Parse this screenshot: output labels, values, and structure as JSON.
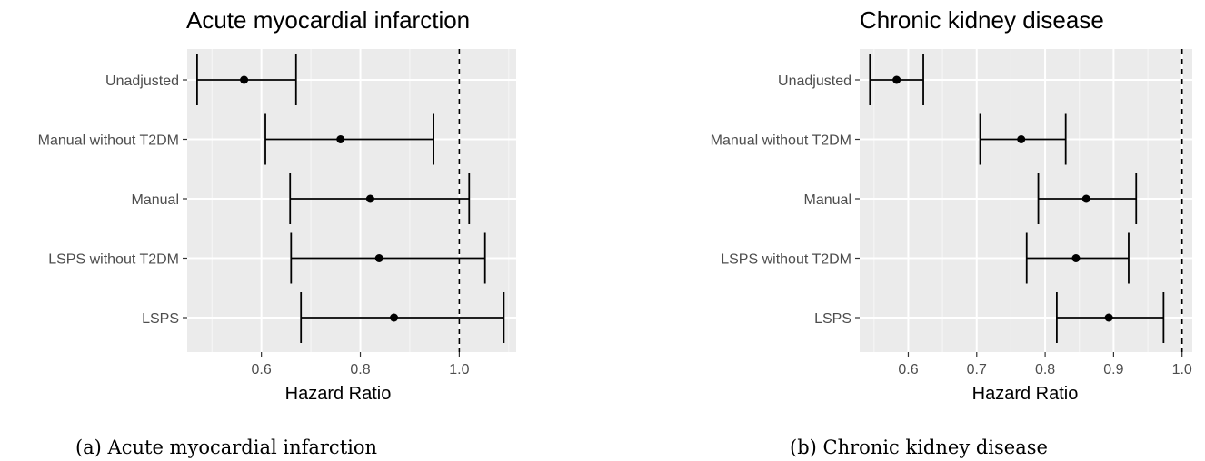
{
  "chart_data": [
    {
      "type": "forest",
      "title": "Acute myocardial infarction",
      "xlabel": "Hazard Ratio",
      "caption": "(a) Acute myocardial infarction",
      "categories": [
        "Unadjusted",
        "Manual without T2DM",
        "Manual",
        "LSPS without T2DM",
        "LSPS"
      ],
      "estimates": [
        0.565,
        0.76,
        0.82,
        0.838,
        0.868
      ],
      "lower": [
        0.47,
        0.608,
        0.658,
        0.66,
        0.68
      ],
      "upper": [
        0.67,
        0.948,
        1.02,
        1.052,
        1.09
      ],
      "xlim": [
        0.45,
        1.115
      ],
      "xticks": [
        0.6,
        0.8,
        1.0
      ],
      "xtick_labels": [
        "0.6",
        "0.8",
        "1.0"
      ],
      "reference_line": 1.0,
      "grid": true
    },
    {
      "type": "forest",
      "title": "Chronic kidney disease",
      "xlabel": "Hazard Ratio",
      "caption": "(b) Chronic kidney disease",
      "categories": [
        "Unadjusted",
        "Manual without T2DM",
        "Manual",
        "LSPS without T2DM",
        "LSPS"
      ],
      "estimates": [
        0.583,
        0.765,
        0.86,
        0.845,
        0.893
      ],
      "lower": [
        0.544,
        0.705,
        0.79,
        0.773,
        0.817
      ],
      "upper": [
        0.622,
        0.83,
        0.933,
        0.922,
        0.973
      ],
      "xlim": [
        0.529,
        1.015
      ],
      "xticks": [
        0.6,
        0.7,
        0.8,
        0.9,
        1.0
      ],
      "xtick_labels": [
        "0.6",
        "0.7",
        "0.8",
        "0.9",
        "1.0"
      ],
      "reference_line": 1.0,
      "grid": true
    }
  ]
}
